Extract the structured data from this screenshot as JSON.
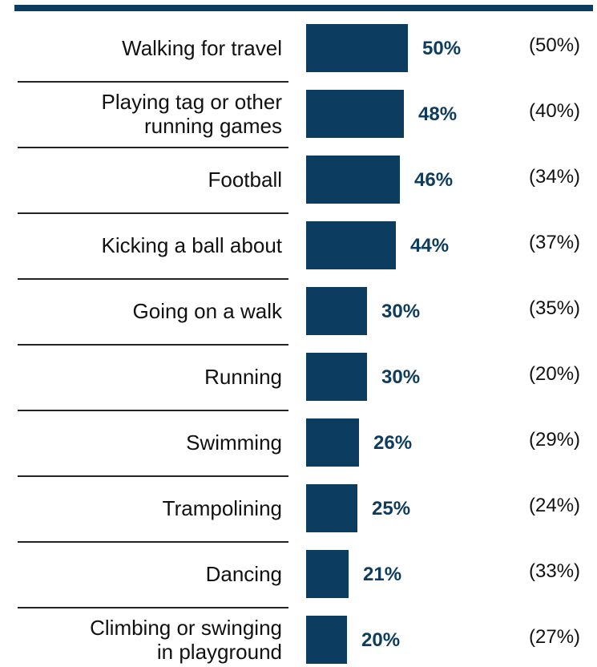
{
  "colors": {
    "bar": "#0d3c61",
    "rule": "#0d3c61",
    "text": "#111111"
  },
  "chart_data": {
    "type": "bar",
    "orientation": "horizontal",
    "categories": [
      "Walking for travel",
      "Playing tag or other running games",
      "Football",
      "Kicking a ball about",
      "Going on a walk",
      "Running",
      "Swimming",
      "Trampolining",
      "Dancing",
      "Climbing or swinging in playground"
    ],
    "category_lines": [
      [
        "Walking for travel"
      ],
      [
        "Playing tag or other",
        "running games"
      ],
      [
        "Football"
      ],
      [
        "Kicking a ball about"
      ],
      [
        "Going on a walk"
      ],
      [
        "Running"
      ],
      [
        "Swimming"
      ],
      [
        "Trampolining"
      ],
      [
        "Dancing"
      ],
      [
        "Climbing or swinging",
        "in playground"
      ]
    ],
    "values": [
      50,
      48,
      46,
      44,
      30,
      30,
      26,
      25,
      21,
      20
    ],
    "value_labels": [
      "50%",
      "48%",
      "46%",
      "44%",
      "30%",
      "30%",
      "26%",
      "25%",
      "21%",
      "20%"
    ],
    "comparison_labels": [
      "(50%)",
      "(40%)",
      "(34%)",
      "(37%)",
      "(35%)",
      "(20%)",
      "(29%)",
      "(24%)",
      "(33%)",
      "(27%)"
    ],
    "comparison_values": [
      50,
      40,
      34,
      37,
      35,
      20,
      29,
      24,
      33,
      27
    ],
    "unit": "%",
    "title": "",
    "xlabel": "",
    "ylabel": "",
    "grid": false,
    "legend": "none"
  }
}
